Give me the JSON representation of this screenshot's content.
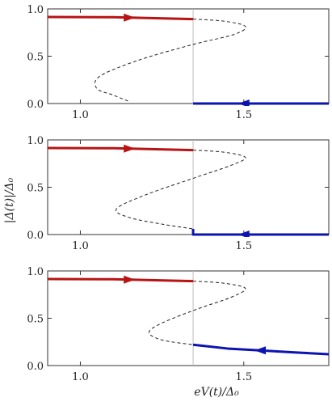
{
  "chart_data": [
    {
      "type": "line",
      "panel": "top",
      "xlim": [
        0.9,
        1.76
      ],
      "ylim": [
        0,
        1
      ],
      "x_ticks": [
        1.0,
        1.5
      ],
      "x_tick_labels": [
        "1.0",
        "1.5"
      ],
      "y_ticks": [
        0,
        0.5,
        1
      ],
      "y_tick_labels": [
        "0.0",
        "0.5",
        "1.0"
      ],
      "vline_x": 1.345,
      "series": [
        {
          "style": "red-solid",
          "color": "#b81414",
          "arrow": "right",
          "arrow_at": 1.15,
          "points": [
            [
              0.9,
              0.915
            ],
            [
              1.1,
              0.912
            ],
            [
              1.345,
              0.892
            ]
          ]
        },
        {
          "style": "black-dashed",
          "color": "#222222",
          "points": [
            [
              1.345,
              0.892
            ],
            [
              1.44,
              0.87
            ],
            [
              1.505,
              0.815
            ],
            [
              1.47,
              0.73
            ],
            [
              1.34,
              0.62
            ],
            [
              1.18,
              0.46
            ],
            [
              1.06,
              0.29
            ],
            [
              1.05,
              0.16
            ],
            [
              1.1,
              0.09
            ],
            [
              1.15,
              0.02
            ]
          ]
        },
        {
          "style": "blue-solid",
          "color": "#0c14b0",
          "arrow": "left",
          "arrow_at": 1.5,
          "points": [
            [
              1.345,
              0.0
            ],
            [
              1.76,
              0.0
            ]
          ]
        }
      ]
    },
    {
      "type": "line",
      "panel": "middle",
      "xlim": [
        0.9,
        1.76
      ],
      "ylim": [
        0,
        1
      ],
      "x_ticks": [
        1.0,
        1.5
      ],
      "x_tick_labels": [
        "1.0",
        "1.5"
      ],
      "y_ticks": [
        0,
        0.5,
        1
      ],
      "y_tick_labels": [
        "0.0",
        "0.5",
        "1.0"
      ],
      "vline_x": 1.345,
      "series": [
        {
          "style": "red-solid",
          "color": "#b81414",
          "arrow": "right",
          "arrow_at": 1.15,
          "points": [
            [
              0.9,
              0.915
            ],
            [
              1.1,
              0.912
            ],
            [
              1.345,
              0.892
            ]
          ]
        },
        {
          "style": "black-dashed",
          "color": "#222222",
          "points": [
            [
              1.345,
              0.892
            ],
            [
              1.44,
              0.87
            ],
            [
              1.505,
              0.815
            ],
            [
              1.46,
              0.73
            ],
            [
              1.35,
              0.6
            ],
            [
              1.2,
              0.42
            ],
            [
              1.11,
              0.27
            ],
            [
              1.15,
              0.18
            ],
            [
              1.25,
              0.11
            ],
            [
              1.345,
              0.06
            ]
          ]
        },
        {
          "style": "blue-solid",
          "color": "#0c14b0",
          "arrow": "left",
          "arrow_at": 1.5,
          "points": [
            [
              1.345,
              0.06
            ],
            [
              1.345,
              0.0
            ],
            [
              1.76,
              0.0
            ]
          ]
        }
      ]
    },
    {
      "type": "line",
      "panel": "bottom",
      "xlim": [
        0.9,
        1.76
      ],
      "ylim": [
        0,
        1
      ],
      "x_ticks": [
        1.0,
        1.5
      ],
      "x_tick_labels": [
        "1.0",
        "1.5"
      ],
      "y_ticks": [
        0,
        0.5,
        1
      ],
      "y_tick_labels": [
        "0.0",
        "0.5",
        "1.0"
      ],
      "xlabel": "eV(t)/Δ₀",
      "vline_x": 1.345,
      "series": [
        {
          "style": "red-solid",
          "color": "#b81414",
          "arrow": "right",
          "arrow_at": 1.15,
          "points": [
            [
              0.9,
              0.915
            ],
            [
              1.1,
              0.912
            ],
            [
              1.345,
              0.892
            ]
          ]
        },
        {
          "style": "black-dashed",
          "color": "#222222",
          "points": [
            [
              1.345,
              0.892
            ],
            [
              1.44,
              0.87
            ],
            [
              1.505,
              0.815
            ],
            [
              1.46,
              0.72
            ],
            [
              1.36,
              0.6
            ],
            [
              1.25,
              0.45
            ],
            [
              1.21,
              0.35
            ],
            [
              1.25,
              0.27
            ],
            [
              1.345,
              0.22
            ]
          ]
        },
        {
          "style": "blue-solid",
          "color": "#0c14b0",
          "arrow": "left",
          "arrow_at": 1.55,
          "points": [
            [
              1.345,
              0.22
            ],
            [
              1.45,
              0.18
            ],
            [
              1.55,
              0.16
            ],
            [
              1.65,
              0.14
            ],
            [
              1.76,
              0.12
            ]
          ]
        }
      ]
    }
  ],
  "ylabel": "|Δ(t)|/Δ₀",
  "xlabel": "eV(t)/Δ₀"
}
